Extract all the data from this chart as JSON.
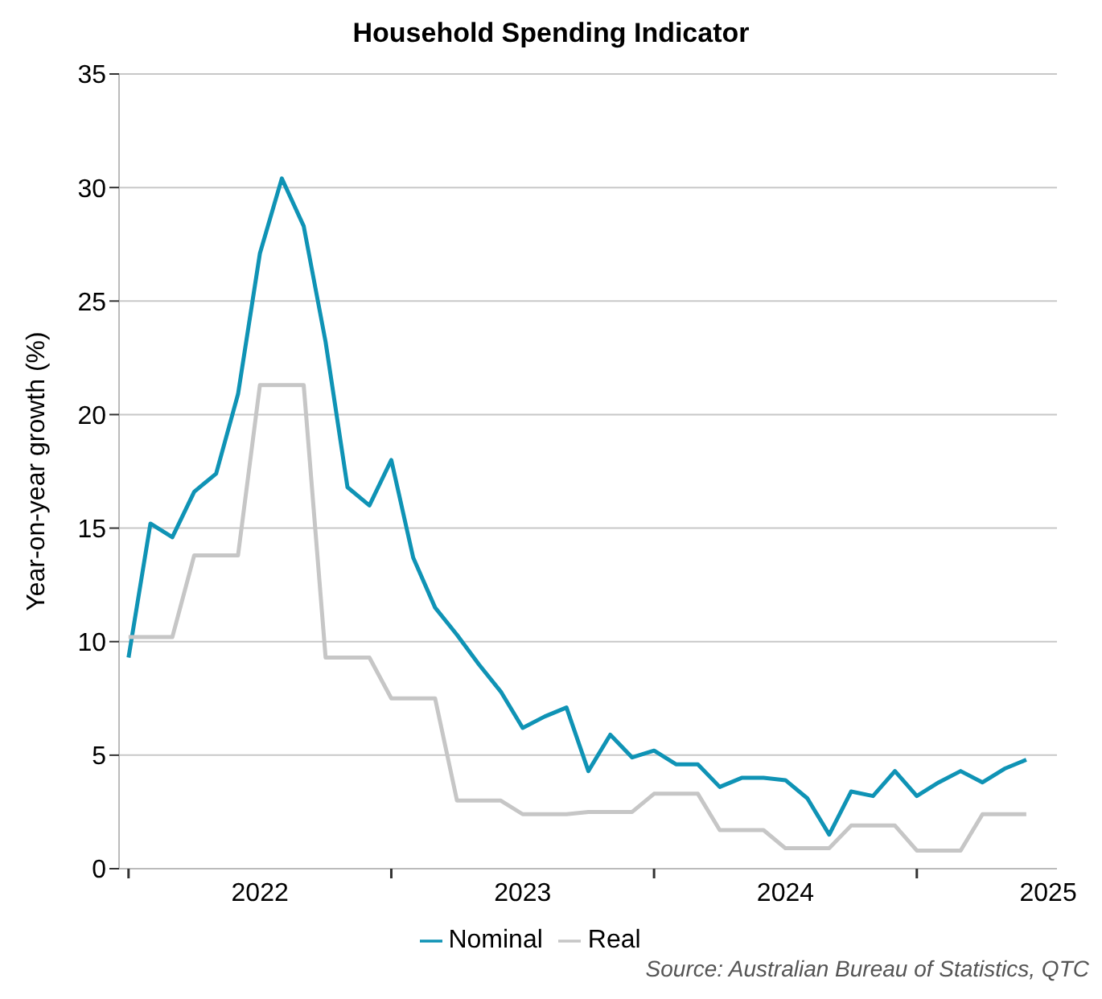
{
  "chart_data": {
    "type": "line",
    "title": "Household Spending Indicator",
    "ylabel": "Year-on-year growth (%)",
    "annotations": [
      "Source: Australian Bureau of Statistics, QTC"
    ],
    "x": [
      "2021-07",
      "2021-08",
      "2021-09",
      "2021-10",
      "2021-11",
      "2021-12",
      "2022-01",
      "2022-02",
      "2022-03",
      "2022-04",
      "2022-05",
      "2022-06",
      "2022-07",
      "2022-08",
      "2022-09",
      "2022-10",
      "2022-11",
      "2022-12",
      "2023-01",
      "2023-02",
      "2023-03",
      "2023-04",
      "2023-05",
      "2023-06",
      "2023-07",
      "2023-08",
      "2023-09",
      "2023-10",
      "2023-11",
      "2023-12",
      "2024-01",
      "2024-02",
      "2024-03",
      "2024-04",
      "2024-05",
      "2024-06",
      "2024-07",
      "2024-08",
      "2024-09",
      "2024-10",
      "2024-11",
      "2024-12"
    ],
    "series": [
      {
        "name": "Nominal",
        "color": "#0f93b5",
        "values": [
          9.3,
          15.2,
          14.6,
          16.6,
          17.4,
          20.9,
          27.1,
          30.4,
          28.3,
          23.2,
          16.8,
          16.0,
          18.0,
          13.7,
          11.5,
          10.3,
          9.0,
          7.8,
          6.2,
          6.7,
          7.1,
          4.3,
          5.9,
          4.9,
          5.2,
          4.6,
          4.6,
          3.6,
          4.0,
          4.0,
          3.9,
          3.1,
          1.5,
          3.4,
          3.2,
          4.3,
          3.2,
          3.8,
          4.3,
          3.8,
          4.4,
          4.8
        ]
      },
      {
        "name": "Real",
        "color": "#c6c6c6",
        "values": [
          10.2,
          10.2,
          10.2,
          13.8,
          13.8,
          13.8,
          21.3,
          21.3,
          21.3,
          9.3,
          9.3,
          9.3,
          7.5,
          7.5,
          7.5,
          3.0,
          3.0,
          3.0,
          2.4,
          2.4,
          2.4,
          2.5,
          2.5,
          2.5,
          3.3,
          3.3,
          3.3,
          1.7,
          1.7,
          1.7,
          0.9,
          0.9,
          0.9,
          1.9,
          1.9,
          1.9,
          0.8,
          0.8,
          0.8,
          2.4,
          2.4,
          2.4
        ]
      }
    ],
    "xlim": [
      "2021-06-18",
      "2025-01-13"
    ],
    "xticks": [
      {
        "value": "2021-07",
        "label": null
      },
      {
        "value": "2022-01",
        "label": "2022"
      },
      {
        "value": "2022-07",
        "label": null
      },
      {
        "value": "2023-01",
        "label": "2023"
      },
      {
        "value": "2023-07",
        "label": null
      },
      {
        "value": "2024-01",
        "label": "2024"
      },
      {
        "value": "2024-07",
        "label": null
      },
      {
        "value": "2025-01",
        "label": "2025"
      }
    ],
    "ylim": [
      0,
      35
    ],
    "yticks": [
      0,
      5,
      10,
      15,
      20,
      25,
      30,
      35
    ],
    "grid": "y",
    "legend": "bottom",
    "marker": "none",
    "line_style": "solid"
  }
}
